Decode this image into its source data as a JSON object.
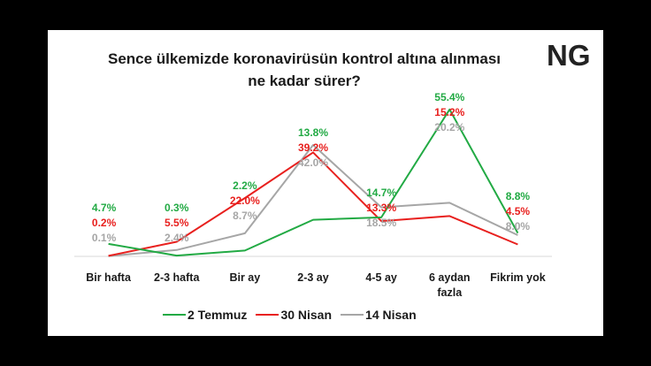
{
  "logo": {
    "text": "NG"
  },
  "chart_data": {
    "type": "line",
    "title": "Sence ülkemizde koronavirüsün kontrol altına alınması ne kadar sürer?",
    "title_lines": [
      "Sence ülkemizde koronavirüsün kontrol altına alınması",
      "ne kadar sürer?"
    ],
    "categories": [
      "Bir hafta",
      "2-3 hafta",
      "Bir ay",
      "2-3 ay",
      "4-5 ay",
      "6 aydan fazla",
      "Fikrim yok"
    ],
    "category_lines": [
      [
        "Bir hafta"
      ],
      [
        "2-3 hafta"
      ],
      [
        "Bir ay"
      ],
      [
        "2-3 ay"
      ],
      [
        "4-5 ay"
      ],
      [
        "6 aydan",
        "fazla"
      ],
      [
        "Fikrim yok"
      ]
    ],
    "series": [
      {
        "name": "2 Temmuz",
        "color": "#22aa44",
        "values": [
          4.7,
          0.3,
          2.2,
          13.8,
          14.7,
          55.4,
          8.8
        ],
        "labels": [
          "4.7%",
          "0.3%",
          "2.2%",
          "13.8%",
          "14.7%",
          "55.4%",
          "8.8%"
        ]
      },
      {
        "name": "30 Nisan",
        "color": "#e8201e",
        "values": [
          0.2,
          5.5,
          22.0,
          39.2,
          13.3,
          15.2,
          4.5
        ],
        "labels": [
          "0.2%",
          "5.5%",
          "22.0%",
          "39.2%",
          "13.3%",
          "15.2%",
          "4.5%"
        ]
      },
      {
        "name": "14 Nisan",
        "color": "#a6a6a6",
        "values": [
          0.1,
          2.4,
          8.7,
          42.0,
          18.5,
          20.2,
          8.0
        ],
        "labels": [
          "0.1%",
          "2.4%",
          "8.7%",
          "42.0%",
          "18.5%",
          "20.2%",
          "8.0%"
        ]
      }
    ],
    "ylim": [
      0,
      60
    ],
    "grid": false,
    "legend_position": "bottom"
  }
}
